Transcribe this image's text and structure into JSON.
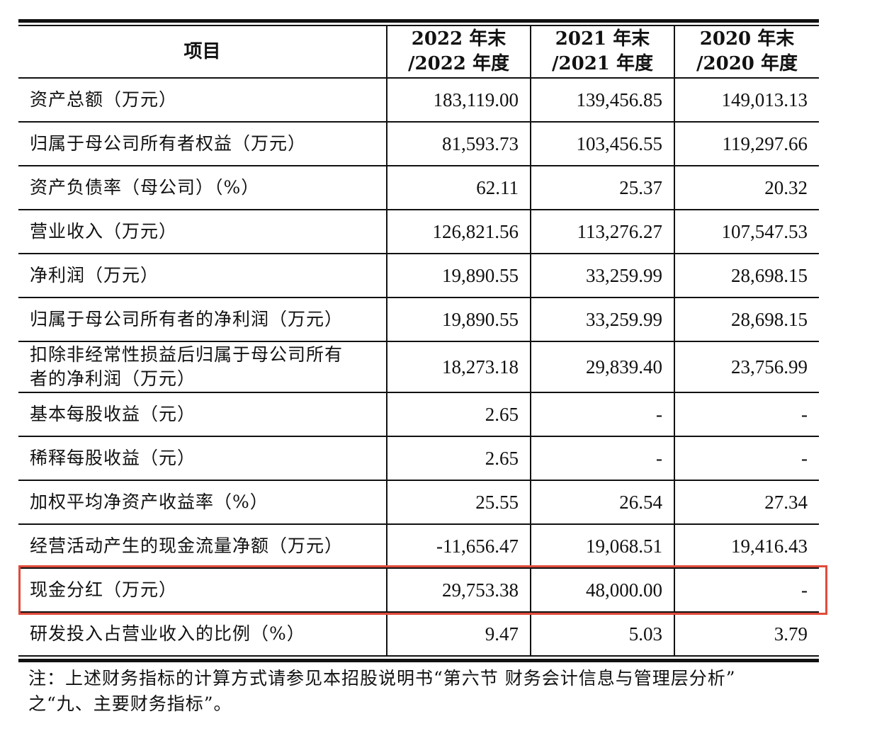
{
  "table": {
    "header": {
      "item": "项目",
      "col_2022": [
        "2022 年末",
        "/2022 年度"
      ],
      "col_2021": [
        "2021 年末",
        "/2021 年度"
      ],
      "col_2020": [
        "2020 年末",
        "/2020 年度"
      ]
    },
    "rows": [
      {
        "label": [
          "资产总额（万元）"
        ],
        "v2022": "183,119.00",
        "v2021": "139,456.85",
        "v2020": "149,013.13"
      },
      {
        "label": [
          "归属于母公司所有者权益（万元）"
        ],
        "v2022": "81,593.73",
        "v2021": "103,456.55",
        "v2020": "119,297.66"
      },
      {
        "label": [
          "资产负债率（母公司）（%）"
        ],
        "v2022": "62.11",
        "v2021": "25.37",
        "v2020": "20.32"
      },
      {
        "label": [
          "营业收入（万元）"
        ],
        "v2022": "126,821.56",
        "v2021": "113,276.27",
        "v2020": "107,547.53"
      },
      {
        "label": [
          "净利润（万元）"
        ],
        "v2022": "19,890.55",
        "v2021": "33,259.99",
        "v2020": "28,698.15"
      },
      {
        "label": [
          "归属于母公司所有者的净利润（万元）"
        ],
        "v2022": "19,890.55",
        "v2021": "33,259.99",
        "v2020": "28,698.15"
      },
      {
        "label": [
          "扣除非经常性损益后归属于母公司所有",
          "者的净利润（万元）"
        ],
        "v2022": "18,273.18",
        "v2021": "29,839.40",
        "v2020": "23,756.99"
      },
      {
        "label": [
          "基本每股收益（元）"
        ],
        "v2022": "2.65",
        "v2021": "-",
        "v2020": "-"
      },
      {
        "label": [
          "稀释每股收益（元）"
        ],
        "v2022": "2.65",
        "v2021": "-",
        "v2020": "-"
      },
      {
        "label": [
          "加权平均净资产收益率（%）"
        ],
        "v2022": "25.55",
        "v2021": "26.54",
        "v2020": "27.34"
      },
      {
        "label": [
          "经营活动产生的现金流量净额（万元）"
        ],
        "v2022": "-11,656.47",
        "v2021": "19,068.51",
        "v2020": "19,416.43"
      },
      {
        "label": [
          "现金分红（万元）"
        ],
        "v2022": "29,753.38",
        "v2021": "48,000.00",
        "v2020": "-"
      },
      {
        "label": [
          "研发投入占营业收入的比例（%）"
        ],
        "v2022": "9.47",
        "v2021": "5.03",
        "v2020": "3.79"
      }
    ]
  },
  "highlight": {
    "row_index": 11,
    "color": "#e04b3c"
  },
  "note": [
    "注：上述财务指标的计算方式请参见本招股说明书“第六节 财务会计信息与管理层分析”",
    "之“九、主要财务指标”。"
  ]
}
